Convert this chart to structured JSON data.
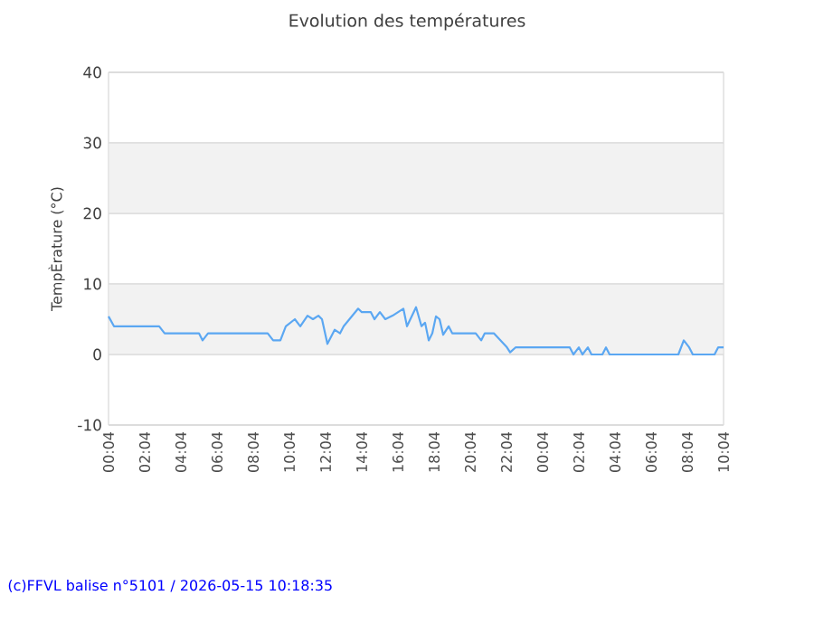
{
  "chart_data": {
    "type": "line",
    "title": "Evolution des températures",
    "ylabel": "TempÈrature (°C)",
    "x": [
      "2026-05-14T00:04",
      "2026-05-14T00:22",
      "2026-05-14T02:52",
      "2026-05-14T03:10",
      "2026-05-14T05:04",
      "2026-05-14T05:16",
      "2026-05-14T05:34",
      "2026-05-14T08:52",
      "2026-05-14T09:10",
      "2026-05-14T09:34",
      "2026-05-14T09:52",
      "2026-05-14T10:22",
      "2026-05-14T10:40",
      "2026-05-14T11:04",
      "2026-05-14T11:22",
      "2026-05-14T11:40",
      "2026-05-14T11:52",
      "2026-05-14T12:10",
      "2026-05-14T12:34",
      "2026-05-14T12:52",
      "2026-05-14T13:04",
      "2026-05-14T13:52",
      "2026-05-14T14:04",
      "2026-05-14T14:34",
      "2026-05-14T14:46",
      "2026-05-14T15:04",
      "2026-05-14T15:22",
      "2026-05-14T15:46",
      "2026-05-14T16:04",
      "2026-05-14T16:22",
      "2026-05-14T16:34",
      "2026-05-14T17:04",
      "2026-05-14T17:22",
      "2026-05-14T17:34",
      "2026-05-14T17:46",
      "2026-05-14T17:58",
      "2026-05-14T18:10",
      "2026-05-14T18:22",
      "2026-05-14T18:34",
      "2026-05-14T18:52",
      "2026-05-14T19:04",
      "2026-05-14T19:22",
      "2026-05-14T20:22",
      "2026-05-14T20:40",
      "2026-05-14T20:52",
      "2026-05-14T21:22",
      "2026-05-14T22:04",
      "2026-05-14T22:16",
      "2026-05-14T22:34",
      "2026-05-15T01:34",
      "2026-05-15T01:46",
      "2026-05-15T02:04",
      "2026-05-15T02:16",
      "2026-05-15T02:34",
      "2026-05-15T02:46",
      "2026-05-15T03:22",
      "2026-05-15T03:34",
      "2026-05-15T03:46",
      "2026-05-15T07:34",
      "2026-05-15T07:52",
      "2026-05-15T08:10",
      "2026-05-15T08:22",
      "2026-05-15T09:34",
      "2026-05-15T09:46",
      "2026-05-15T10:04"
    ],
    "series": [
      {
        "color": "#5ba7f2",
        "values": [
          5.4,
          4,
          4,
          3,
          3,
          2,
          3,
          3,
          2,
          2,
          4,
          5,
          4,
          5.5,
          5,
          5.5,
          5,
          1.5,
          3.5,
          3,
          4,
          6.5,
          6,
          6,
          5,
          6,
          5,
          5.5,
          6,
          6.5,
          4,
          6.7,
          4,
          4.5,
          2,
          3,
          5.4,
          5,
          2.8,
          4,
          3,
          3,
          3,
          2,
          3,
          3,
          1.1,
          0.3,
          1,
          1,
          0,
          1,
          0,
          1,
          0,
          0,
          1,
          0,
          0,
          2,
          1,
          0,
          0,
          1,
          1
        ]
      }
    ],
    "xlim": [
      "2026-05-14T00:04",
      "2026-05-15T10:04"
    ],
    "xticks": [
      {
        "value": "2026-05-14T00:04",
        "label": "00:04"
      },
      {
        "value": "2026-05-14T02:04",
        "label": "02:04"
      },
      {
        "value": "2026-05-14T04:04",
        "label": "04:04"
      },
      {
        "value": "2026-05-14T06:04",
        "label": "06:04"
      },
      {
        "value": "2026-05-14T08:04",
        "label": "08:04"
      },
      {
        "value": "2026-05-14T10:04",
        "label": "10:04"
      },
      {
        "value": "2026-05-14T12:04",
        "label": "12:04"
      },
      {
        "value": "2026-05-14T14:04",
        "label": "14:04"
      },
      {
        "value": "2026-05-14T16:04",
        "label": "16:04"
      },
      {
        "value": "2026-05-14T18:04",
        "label": "18:04"
      },
      {
        "value": "2026-05-14T20:04",
        "label": "20:04"
      },
      {
        "value": "2026-05-14T22:04",
        "label": "22:04"
      },
      {
        "value": "2026-05-15T00:04",
        "label": "00:04"
      },
      {
        "value": "2026-05-15T02:04",
        "label": "02:04"
      },
      {
        "value": "2026-05-15T04:04",
        "label": "04:04"
      },
      {
        "value": "2026-05-15T06:04",
        "label": "06:04"
      },
      {
        "value": "2026-05-15T08:04",
        "label": "08:04"
      },
      {
        "value": "2026-05-15T10:04",
        "label": "10:04"
      }
    ],
    "ylim": [
      -10,
      40
    ],
    "yticks": [
      -10,
      0,
      10,
      20,
      30,
      40
    ],
    "bands": [
      {
        "axis": "y",
        "from": 0,
        "to": 10,
        "color": "#f2f2f2"
      },
      {
        "axis": "y",
        "from": 20,
        "to": 30,
        "color": "#f2f2f2"
      }
    ],
    "grid": "y",
    "marker": "none",
    "line_style": "solid",
    "annotations": [
      "(c)FFVL balise n°5101 / 2026-05-15 10:18:35"
    ]
  }
}
